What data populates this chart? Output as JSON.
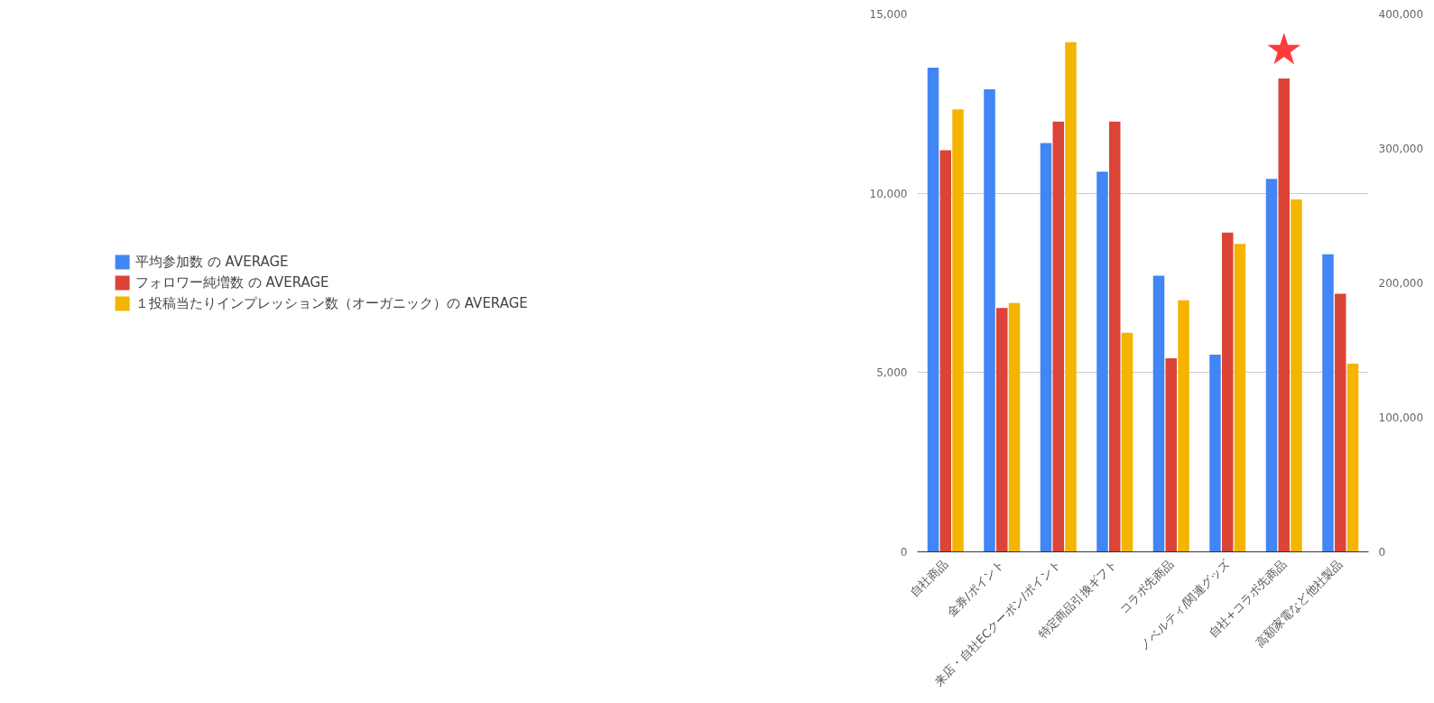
{
  "chart_data": {
    "type": "bar",
    "categories": [
      "自社商品",
      "金券/ポイント",
      "来店・自社ECクーポン/ポイント",
      "特定商品引換ギフト",
      "コラボ先商品",
      "ノベルティ/関連グッズ",
      "自社+コラボ先商品",
      "高額家電など他社製品"
    ],
    "series": [
      {
        "name": "平均参加数 の AVERAGE",
        "color": "#4285f4",
        "values": [
          13500,
          12900,
          11400,
          10600,
          7700,
          5500,
          10400,
          8300
        ]
      },
      {
        "name": "フォロワー純増数 の AVERAGE",
        "color": "#db4437",
        "values": [
          11200,
          6800,
          12000,
          12000,
          5400,
          8900,
          13200,
          7200
        ]
      },
      {
        "name": "１投稿当たりインプレッション数（オーガニック）の AVERAGE",
        "color": "#f4b400",
        "axis": "y2",
        "values": [
          329000,
          185000,
          379000,
          163000,
          187000,
          229000,
          262000,
          140000
        ]
      }
    ],
    "ylim": [
      0,
      15000
    ],
    "yticks": [
      {
        "value": 0,
        "label": "0"
      },
      {
        "value": 5000,
        "label": "5,000"
      },
      {
        "value": 10000,
        "label": "10,000"
      },
      {
        "value": 15000,
        "label": "15,000"
      }
    ],
    "y2lim": [
      0,
      400000
    ],
    "y2ticks": [
      {
        "value": 0,
        "label": "0"
      },
      {
        "value": 100000,
        "label": "100,000"
      },
      {
        "value": 200000,
        "label": "200,000"
      },
      {
        "value": 300000,
        "label": "300,000"
      },
      {
        "value": 400000,
        "label": "400,000"
      }
    ],
    "grid": "y",
    "legend": "left",
    "annotations": [
      "★"
    ]
  }
}
